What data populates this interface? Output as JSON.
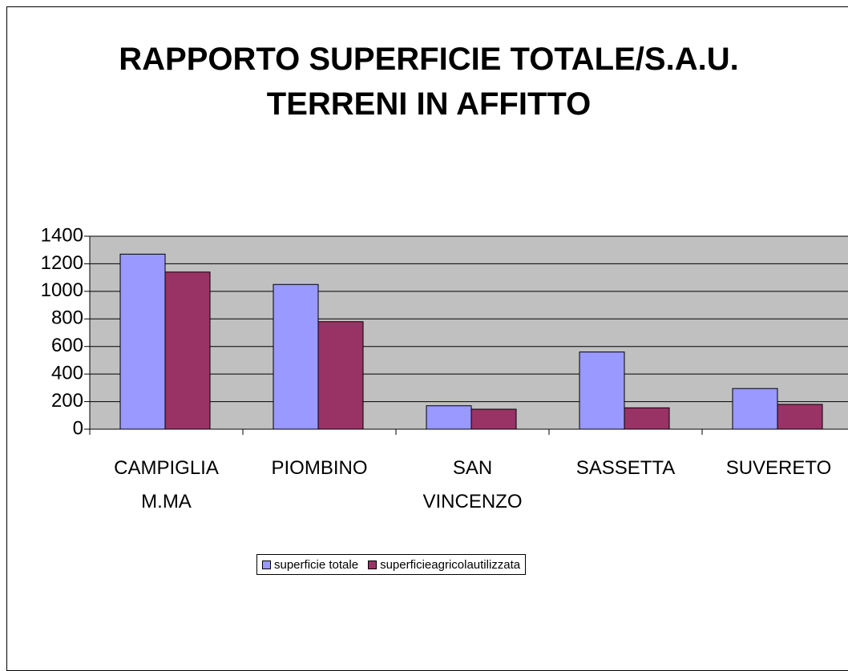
{
  "chart_data": {
    "type": "bar",
    "title": "RAPPORTO SUPERFICIE TOTALE/S.A.U. TERRENI IN AFFITTO",
    "categories": [
      "CAMPIGLIA M.MA",
      "PIOMBINO",
      "SAN VINCENZO",
      "SASSETTA",
      "SUVERETO"
    ],
    "series": [
      {
        "name": "superficie totale",
        "color": "#9999ff",
        "values": [
          1270,
          1050,
          170,
          560,
          295
        ]
      },
      {
        "name": "superficieagricolautilizzata",
        "color": "#993366",
        "values": [
          1140,
          780,
          145,
          155,
          180
        ]
      }
    ],
    "ylim": [
      0,
      1400
    ],
    "yticks": [
      0,
      200,
      400,
      600,
      800,
      1000,
      1200,
      1400
    ],
    "grid": true,
    "plot_background": "#c0c0c0",
    "legend": "bottom"
  }
}
